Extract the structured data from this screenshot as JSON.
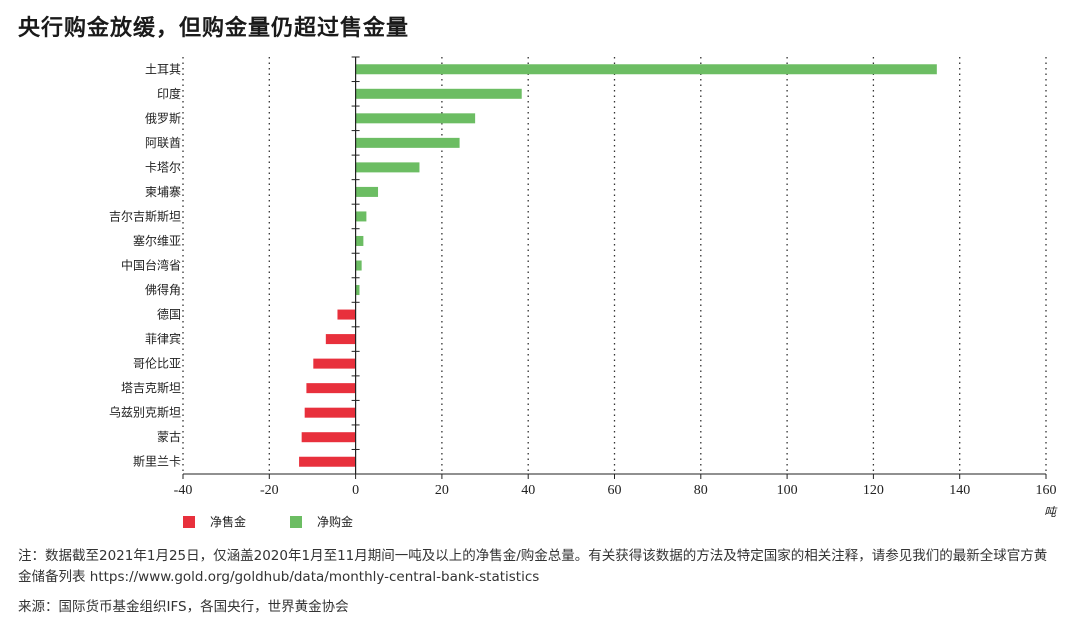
{
  "title": "央行购金放缓，但购金量仍超过售金量",
  "note": "注：数据截至2021年1月25日，仅涵盖2020年1月至11月期间一吨及以上的净售金/购金总量。有关获得该数据的方法及特定国家的相关注释，请参见我们的最新全球官方黄金储备列表 https://www.gold.org/goldhub/data/monthly-central-bank-statistics",
  "source": "来源：国际货币基金组织IFS，各国央行，世界黄金协会",
  "colors": {
    "positive": "#6cbd63",
    "negative": "#e8303c"
  },
  "chart_data": {
    "type": "bar",
    "orientation": "horizontal",
    "title": "央行购金放缓，但购金量仍超过售金量",
    "xlabel": "吨",
    "xlim": [
      -40,
      160
    ],
    "xticks": [
      -40,
      -20,
      0,
      20,
      40,
      60,
      80,
      100,
      120,
      140,
      160
    ],
    "grid": "vertical dotted",
    "legend_position": "bottom-left",
    "categories": [
      "土耳其",
      "印度",
      "俄罗斯",
      "阿联酋",
      "卡塔尔",
      "柬埔寨",
      "吉尔吉斯斯坦",
      "塞尔维亚",
      "中国台湾省",
      "佛得角",
      "德国",
      "菲律宾",
      "哥伦比亚",
      "塔吉克斯坦",
      "乌兹别克斯坦",
      "蒙古",
      "斯里兰卡"
    ],
    "values": [
      134.7,
      38.5,
      27.7,
      24.1,
      14.8,
      5.2,
      2.5,
      1.8,
      1.4,
      0.9,
      -4.2,
      -6.9,
      -9.8,
      -11.4,
      -11.8,
      -12.5,
      -13.1
    ],
    "legend": [
      {
        "name": "净售金",
        "color": "#e8303c"
      },
      {
        "name": "净购金",
        "color": "#6cbd63"
      }
    ]
  }
}
